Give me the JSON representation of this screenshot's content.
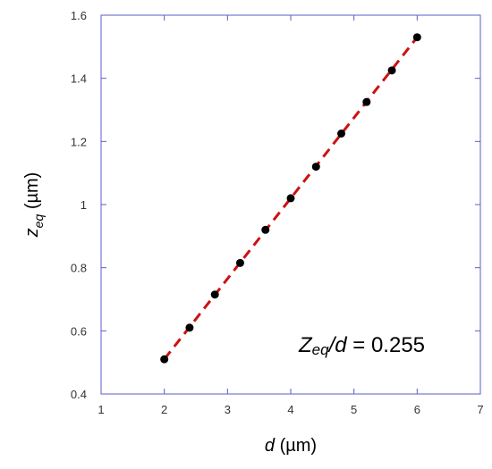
{
  "chart_data": {
    "type": "scatter",
    "xlabel": {
      "var": "d",
      "unit": " (µm)"
    },
    "ylabel": {
      "var": "z",
      "sub": "eq",
      "unit": " (µm)"
    },
    "xlim": [
      1,
      7
    ],
    "ylim": [
      0.4,
      1.6
    ],
    "xticks": [
      1,
      2,
      3,
      4,
      5,
      6,
      7
    ],
    "yticks": [
      0.4,
      0.6,
      0.8,
      1,
      1.2,
      1.4,
      1.6
    ],
    "x_tick_labels": [
      "1",
      "2",
      "3",
      "4",
      "5",
      "6",
      "7"
    ],
    "y_tick_labels": [
      "0.4",
      "0.6",
      "0.8",
      "1",
      "1.2",
      "1.4",
      "1.6"
    ],
    "grid": false,
    "series": [
      {
        "x": [
          2.0,
          2.4,
          2.8,
          3.2,
          3.6,
          4.0,
          4.4,
          4.8,
          5.2,
          5.6,
          6.0
        ],
        "y": [
          0.51,
          0.61,
          0.715,
          0.815,
          0.92,
          1.02,
          1.12,
          1.225,
          1.325,
          1.425,
          1.53
        ]
      }
    ],
    "fit_line": {
      "slope": 0.255,
      "intercept": 0,
      "x_range": [
        2,
        6
      ]
    },
    "annotation": {
      "var": "Z",
      "sub": "eq",
      "rest": "/d = 0.255"
    },
    "colors": {
      "axes": "#5b5bc8",
      "points": "#000000",
      "fit": "#cc1111"
    }
  }
}
